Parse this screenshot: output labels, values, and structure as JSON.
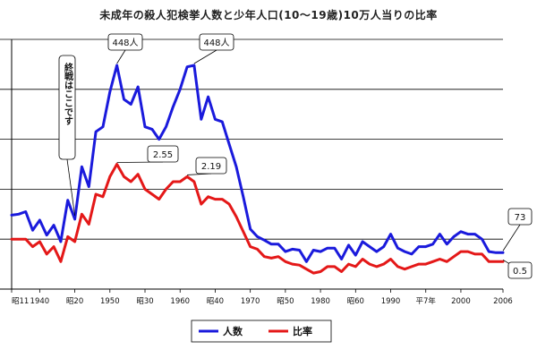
{
  "title": "未成年の殺人犯検挙人数と少年人口(10〜19歳)10万人当りの比率",
  "chart_data": {
    "type": "line",
    "title": "未成年の殺人犯検挙人数と少年人口(10〜19歳)10万人当りの比率",
    "x_tick_labels": [
      {
        "year": 1936,
        "label": "昭11"
      },
      {
        "year": 1940,
        "label": "1940"
      },
      {
        "year": 1945,
        "label": "昭20"
      },
      {
        "year": 1950,
        "label": "1950"
      },
      {
        "year": 1955,
        "label": "昭30"
      },
      {
        "year": 1960,
        "label": "1960"
      },
      {
        "year": 1965,
        "label": "昭40"
      },
      {
        "year": 1970,
        "label": "1970"
      },
      {
        "year": 1975,
        "label": "昭50"
      },
      {
        "year": 1980,
        "label": "1980"
      },
      {
        "year": 1985,
        "label": "昭60"
      },
      {
        "year": 1990,
        "label": "1990"
      },
      {
        "year": 1995,
        "label": "平7年"
      },
      {
        "year": 2000,
        "label": "2000"
      },
      {
        "year": 2006,
        "label": "2006"
      }
    ],
    "xlim": [
      1936,
      2006
    ],
    "ylim": [
      0,
      500
    ],
    "grid": true,
    "legend_position": "bottom-center",
    "series": [
      {
        "name": "人数",
        "color": "#1a1adc",
        "x": [
          1936,
          1937,
          1938,
          1939,
          1940,
          1941,
          1942,
          1943,
          1944,
          1945,
          1946,
          1947,
          1948,
          1949,
          1950,
          1951,
          1952,
          1953,
          1954,
          1955,
          1956,
          1957,
          1958,
          1959,
          1960,
          1961,
          1962,
          1963,
          1964,
          1965,
          1966,
          1967,
          1968,
          1969,
          1970,
          1971,
          1972,
          1973,
          1974,
          1975,
          1976,
          1977,
          1978,
          1979,
          1980,
          1981,
          1982,
          1983,
          1984,
          1985,
          1986,
          1987,
          1988,
          1989,
          1990,
          1991,
          1992,
          1993,
          1994,
          1995,
          1996,
          1997,
          1998,
          1999,
          2000,
          2001,
          2002,
          2003,
          2004,
          2005,
          2006
        ],
        "values": [
          148,
          150,
          155,
          118,
          138,
          108,
          128,
          95,
          178,
          140,
          245,
          205,
          315,
          325,
          395,
          448,
          380,
          370,
          405,
          325,
          320,
          300,
          325,
          365,
          400,
          445,
          448,
          340,
          385,
          340,
          335,
          290,
          245,
          185,
          120,
          105,
          98,
          90,
          90,
          75,
          80,
          78,
          55,
          78,
          75,
          82,
          82,
          60,
          88,
          68,
          95,
          85,
          75,
          85,
          110,
          82,
          75,
          70,
          85,
          85,
          90,
          110,
          90,
          105,
          115,
          110,
          110,
          100,
          75,
          73,
          73
        ]
      },
      {
        "name": "比率",
        "color": "#e41818",
        "x": [
          1936,
          1937,
          1938,
          1939,
          1940,
          1941,
          1942,
          1943,
          1944,
          1945,
          1946,
          1947,
          1948,
          1949,
          1950,
          1951,
          1952,
          1953,
          1954,
          1955,
          1956,
          1957,
          1958,
          1959,
          1960,
          1961,
          1962,
          1963,
          1964,
          1965,
          1966,
          1967,
          1968,
          1969,
          1970,
          1971,
          1972,
          1973,
          1974,
          1975,
          1976,
          1977,
          1978,
          1979,
          1980,
          1981,
          1982,
          1983,
          1984,
          1985,
          1986,
          1987,
          1988,
          1989,
          1990,
          1991,
          1992,
          1993,
          1994,
          1995,
          1996,
          1997,
          1998,
          1999,
          2000,
          2001,
          2002,
          2003,
          2004,
          2005,
          2006
        ],
        "values": [
          100,
          100,
          100,
          85,
          95,
          70,
          85,
          55,
          105,
          95,
          150,
          130,
          190,
          185,
          225,
          250,
          225,
          215,
          230,
          200,
          190,
          180,
          200,
          215,
          215,
          225,
          215,
          170,
          185,
          180,
          180,
          170,
          145,
          115,
          85,
          80,
          65,
          62,
          65,
          55,
          50,
          48,
          40,
          32,
          35,
          45,
          45,
          35,
          50,
          45,
          60,
          50,
          45,
          50,
          60,
          45,
          40,
          45,
          50,
          50,
          55,
          60,
          55,
          65,
          75,
          75,
          70,
          70,
          55,
          55,
          55
        ]
      }
    ],
    "annotations": [
      {
        "text": "448人",
        "x": 1951,
        "y": 448
      },
      {
        "text": "448人",
        "x": 1962,
        "y": 448
      },
      {
        "text": "2.55",
        "x": 1951,
        "y": 250
      },
      {
        "text": "2.19",
        "x": 1961,
        "y": 225
      },
      {
        "text": "73",
        "x": 2006,
        "y": 73
      },
      {
        "text": "0.5",
        "x": 2006,
        "y": 55
      },
      {
        "text": "終戦はここです",
        "x": 1945,
        "y": 140
      }
    ]
  }
}
